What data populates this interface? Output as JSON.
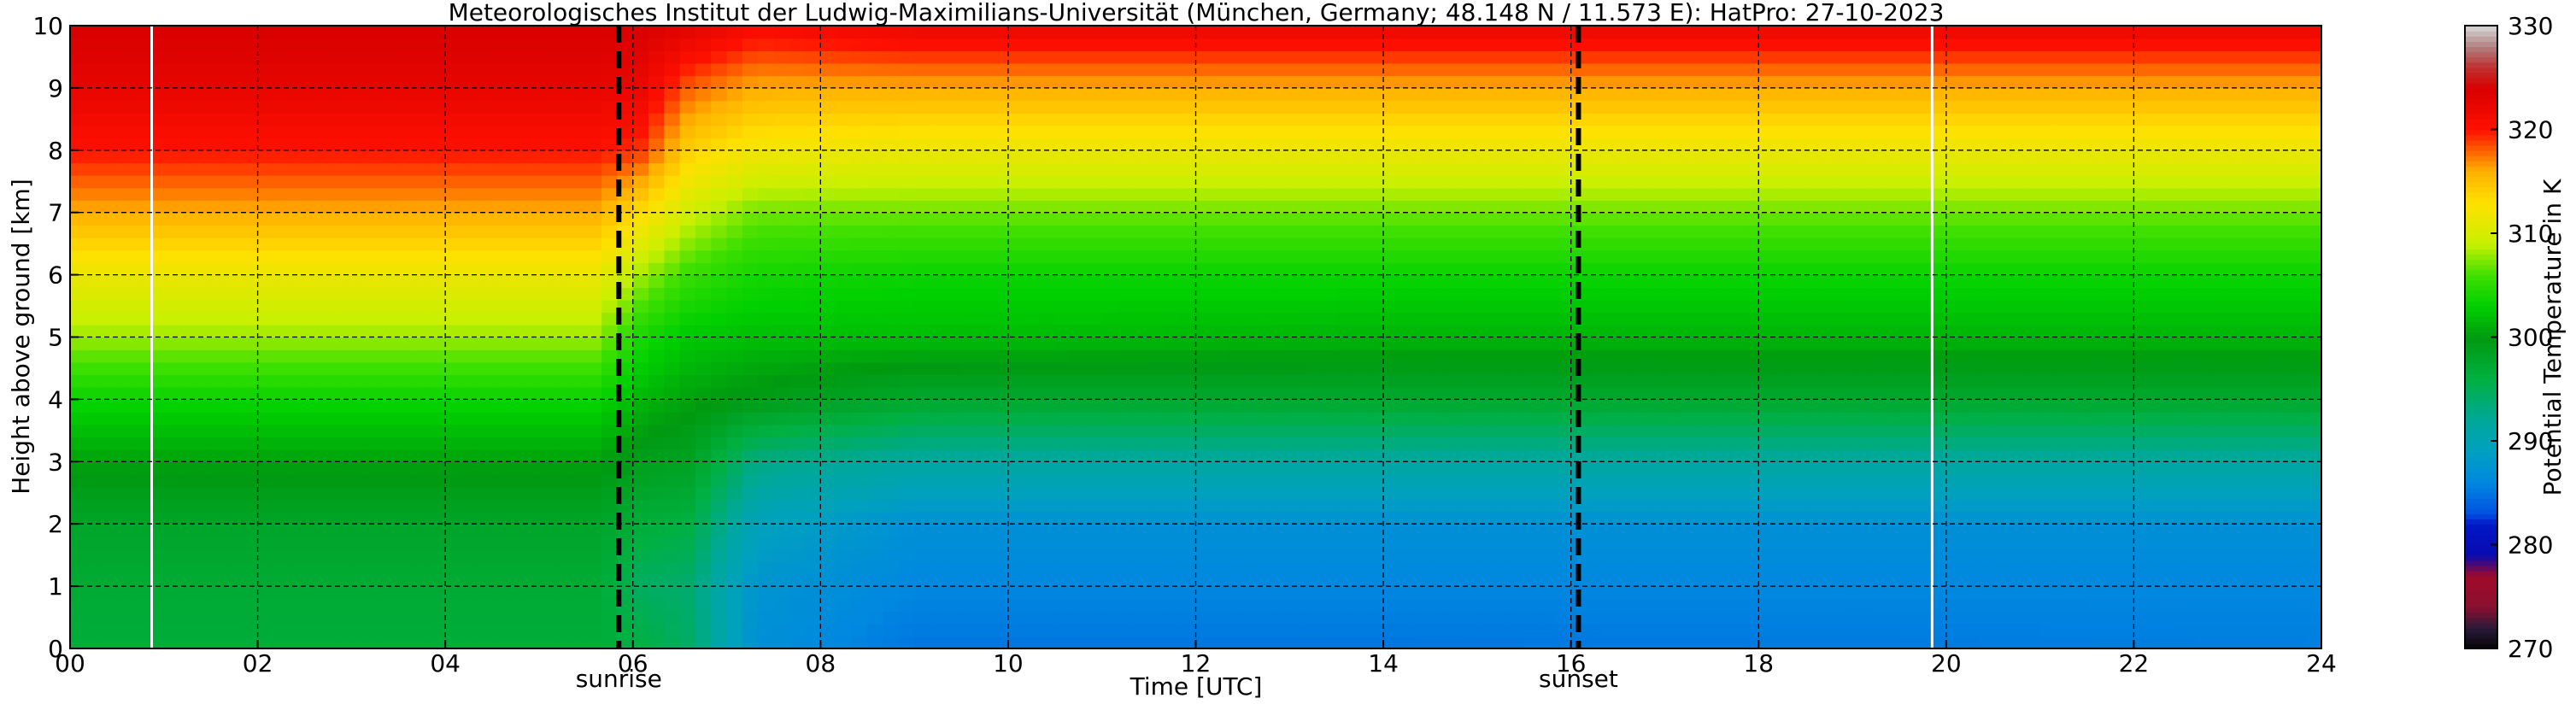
{
  "chart_data": {
    "type": "heatmap",
    "title": "Meteorologisches Institut der Ludwig-Maximilians-Universität (München, Germany; 48.148 N / 11.573 E):    HatPro: 27-10-2023",
    "xlabel": "Time [UTC]",
    "ylabel": "Height above ground [km]",
    "xlim": [
      0,
      24
    ],
    "ylim": [
      0,
      10
    ],
    "x_ticks": [
      "00",
      "02",
      "04",
      "06",
      "08",
      "10",
      "12",
      "14",
      "16",
      "18",
      "20",
      "22",
      "24"
    ],
    "y_ticks": [
      "0",
      "1",
      "2",
      "3",
      "4",
      "5",
      "6",
      "7",
      "8",
      "9",
      "10"
    ],
    "grid": true,
    "colorbar": {
      "label": "Potential Temperature in K",
      "range": [
        270,
        330
      ],
      "ticks": [
        "270",
        "280",
        "290",
        "300",
        "310",
        "320",
        "330"
      ]
    },
    "events": [
      {
        "label": "sunrise",
        "time": 5.85
      },
      {
        "label": "sunset",
        "time": 16.08
      }
    ],
    "data_gaps": [
      0.87,
      19.85
    ],
    "profiles": [
      {
        "time": 0,
        "heights": [
          0,
          1,
          2,
          3,
          4,
          5,
          6,
          7,
          8,
          9,
          10
        ],
        "values": [
          296.5,
          297,
          298,
          300.5,
          303.5,
          308,
          311.5,
          316,
          320,
          322.5,
          324
        ]
      },
      {
        "time": 5.6,
        "heights": [
          0,
          1,
          2,
          3,
          4,
          5,
          6,
          7,
          8,
          9,
          10
        ],
        "values": [
          296.5,
          297,
          298,
          300.5,
          303.5,
          308,
          311.5,
          316,
          320,
          322.5,
          324
        ]
      },
      {
        "time": 6.1,
        "heights": [
          0,
          1,
          2,
          3,
          4,
          5,
          6,
          7,
          8,
          9,
          10
        ],
        "values": [
          296,
          294.5,
          296.5,
          299,
          301.5,
          304,
          308,
          313,
          319,
          322,
          324
        ]
      },
      {
        "time": 6.6,
        "heights": [
          0,
          1,
          2,
          3,
          4,
          5,
          6,
          7,
          8,
          9,
          10
        ],
        "values": [
          294.5,
          294,
          296,
          298.5,
          300.5,
          302.5,
          305.5,
          309.5,
          314,
          318,
          323
        ]
      },
      {
        "time": 7.3,
        "heights": [
          0,
          1,
          2,
          3,
          4,
          5,
          6,
          7,
          8,
          9,
          10
        ],
        "values": [
          287,
          287.5,
          289.5,
          293,
          299.5,
          302,
          304,
          307,
          312,
          316,
          321
        ]
      },
      {
        "time": 9,
        "heights": [
          0,
          1,
          2,
          3,
          4,
          5,
          6,
          7,
          8,
          9,
          10
        ],
        "values": [
          285,
          286,
          287,
          291.5,
          297.5,
          302,
          303.5,
          307,
          311.5,
          316,
          322
        ]
      },
      {
        "time": 14,
        "heights": [
          0,
          1,
          2,
          3,
          4,
          5,
          6,
          7,
          8,
          9,
          10
        ],
        "values": [
          285,
          286,
          287,
          291.5,
          297.5,
          301.5,
          303.5,
          307,
          311.5,
          316,
          322
        ]
      },
      {
        "time": 24,
        "heights": [
          0,
          1,
          2,
          3,
          4,
          5,
          6,
          7,
          8,
          9,
          10
        ],
        "values": [
          285.5,
          286,
          287,
          291.5,
          297.5,
          301.5,
          303.5,
          307,
          311.5,
          316,
          322
        ]
      }
    ]
  }
}
